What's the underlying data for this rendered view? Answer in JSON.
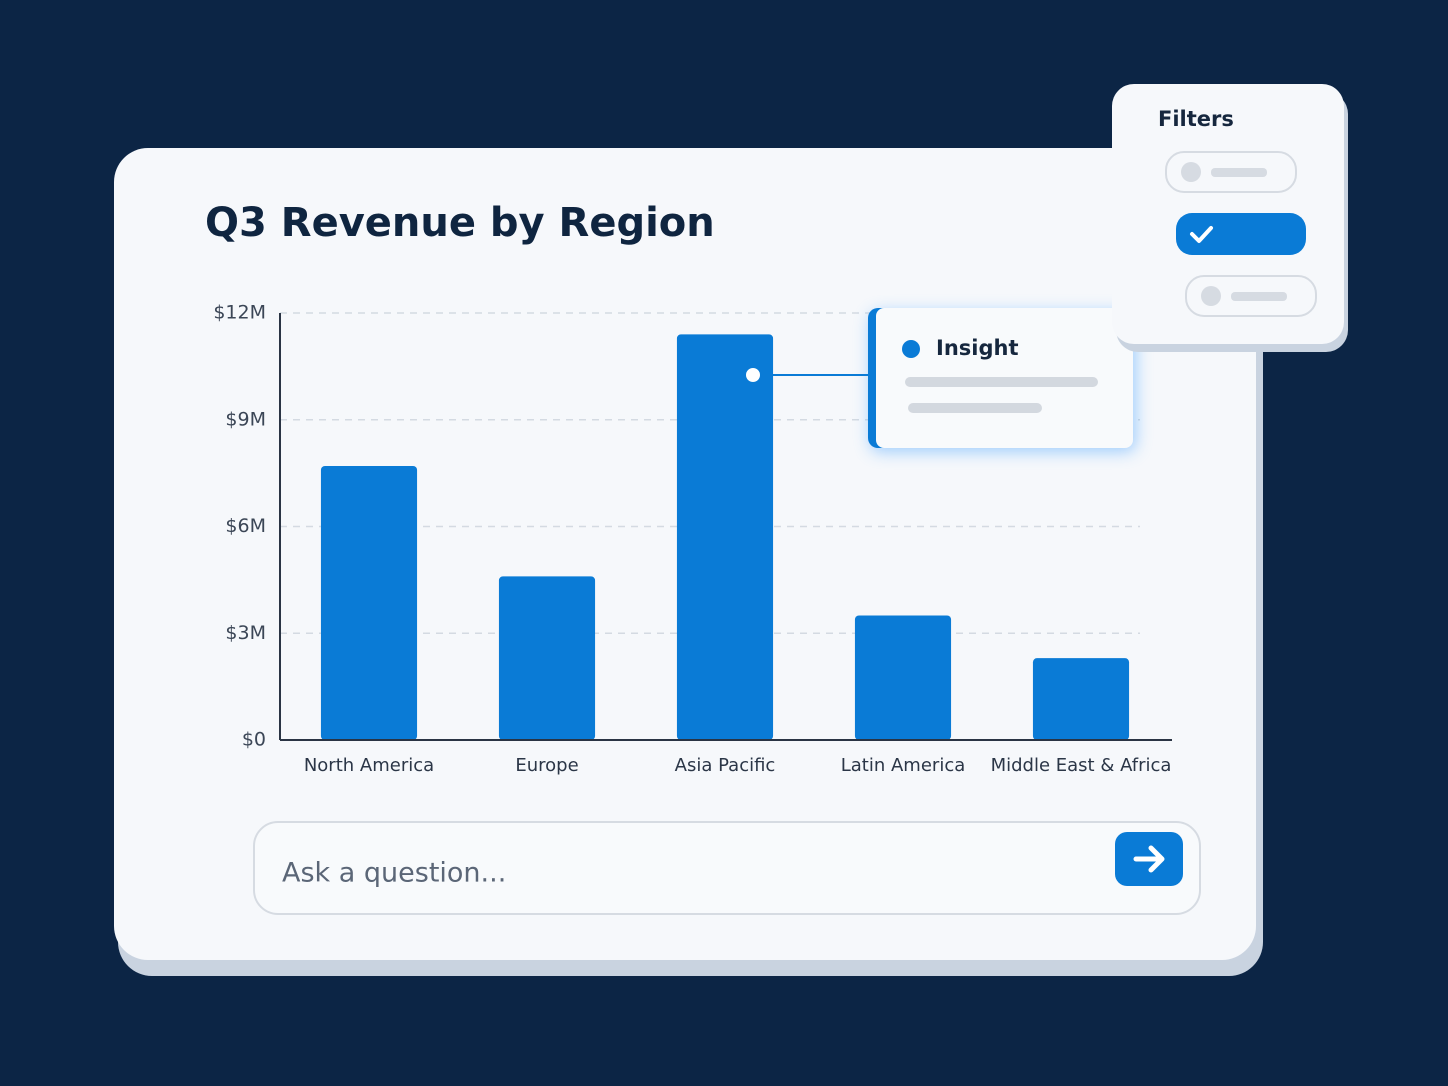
{
  "chart_data": {
    "type": "bar",
    "title": "Q3 Revenue by Region",
    "categories": [
      "North America",
      "Europe",
      "Asia Pacific",
      "Latin America",
      "Middle East & Africa"
    ],
    "values": [
      7700000,
      4600000,
      11400000,
      3500000,
      2300000
    ],
    "color": "#0a7bd6",
    "ylim": [
      0,
      12000000
    ],
    "yticks": [
      {
        "value": 0,
        "label": "$0"
      },
      {
        "value": 3000000,
        "label": "$3M"
      },
      {
        "value": 6000000,
        "label": "$6M"
      },
      {
        "value": 9000000,
        "label": "$9M"
      },
      {
        "value": 12000000,
        "label": "$12M"
      }
    ],
    "grid": true
  },
  "insight": {
    "title": "Insight"
  },
  "filters": {
    "title": "Filters"
  },
  "question_input": {
    "placeholder": "Ask a question..."
  }
}
